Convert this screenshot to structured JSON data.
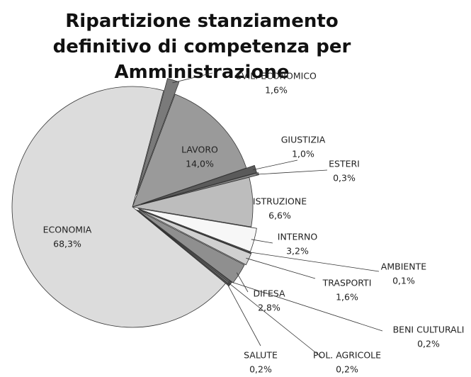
{
  "chart_data": {
    "type": "pie",
    "title": "Ripartizione stanziamento definitivo di competenza per Amministrazione",
    "labels": [
      "SVIL. ECONOMICO",
      "LAVORO",
      "GIUSTIZIA",
      "ESTERI",
      "ISTRUZIONE",
      "INTERNO",
      "AMBIENTE",
      "TRASPORTI",
      "DIFESA",
      "BENI CULTURALI",
      "POL. AGRICOLE",
      "SALUTE",
      "ECONOMIA"
    ],
    "values": [
      1.6,
      14.0,
      1.0,
      0.3,
      6.6,
      3.2,
      0.1,
      1.6,
      2.8,
      0.2,
      0.2,
      0.2,
      68.3
    ],
    "value_labels": [
      "1,6%",
      "14,0%",
      "1,0%",
      "0,3%",
      "6,6%",
      "3,2%",
      "0,1%",
      "1,6%",
      "2,8%",
      "0,2%",
      "0,2%",
      "0,2%",
      "68,3%"
    ],
    "colors": [
      "#7a7a7a",
      "#9a9a9a",
      "#5a5a5a",
      "#8a8a8a",
      "#bdbdbd",
      "#f7f7f7",
      "#9a9a9a",
      "#d0d0d0",
      "#8f8f8f",
      "#6a6a6a",
      "#7a7a7a",
      "#555555",
      "#dcdcdc"
    ]
  }
}
